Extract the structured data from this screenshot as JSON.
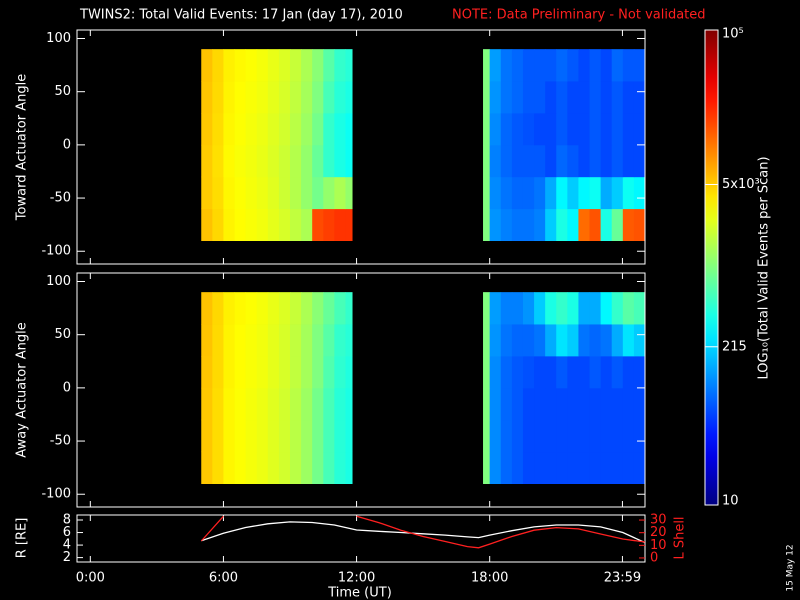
{
  "chart_data": [
    {
      "type": "heatmap",
      "title": "TWINS2: Total Valid Events: 17 Jan (day  17), 2010",
      "note": "NOTE: Data Preliminary - Not validated",
      "ylabel": "Toward Actuator Angle",
      "ylim": [
        -112,
        108
      ],
      "yticks": [
        -100,
        -50,
        0,
        50,
        100
      ],
      "xbins": [
        5,
        5.5,
        6,
        6.5,
        7,
        7.5,
        8,
        8.5,
        9,
        9.5,
        10,
        10.5,
        11,
        11.5,
        11.8,
        17.7,
        18,
        18.5,
        19,
        19.5,
        20,
        20.5,
        21,
        21.5,
        22,
        22.5,
        23,
        23.5,
        24,
        24.5,
        25
      ],
      "ybins": [
        -90,
        -60,
        -30,
        0,
        30,
        60,
        90
      ],
      "z": [
        [
          5500,
          4500,
          3500,
          3200,
          3000,
          2800,
          2500,
          2200,
          1800,
          1500,
          16000,
          18000,
          20000,
          20000,
          null,
          1000,
          120,
          100,
          90,
          90,
          100,
          200,
          400,
          300,
          12000,
          15000,
          400,
          800,
          14000,
          15000
        ],
        [
          5000,
          4300,
          3400,
          3100,
          2900,
          2700,
          2400,
          2000,
          1600,
          1200,
          900,
          1200,
          1500,
          1200,
          null,
          1000,
          110,
          90,
          80,
          80,
          90,
          150,
          300,
          200,
          300,
          350,
          150,
          200,
          350,
          300
        ],
        [
          5000,
          4200,
          3300,
          3000,
          2800,
          2600,
          2300,
          2000,
          1600,
          1200,
          800,
          500,
          400,
          350,
          null,
          1000,
          100,
          80,
          70,
          70,
          70,
          60,
          80,
          70,
          60,
          70,
          60,
          70,
          60,
          60
        ],
        [
          5200,
          4300,
          3400,
          3100,
          2900,
          2700,
          2400,
          2100,
          1700,
          1300,
          900,
          500,
          400,
          350,
          null,
          1000,
          110,
          80,
          70,
          65,
          60,
          60,
          70,
          60,
          60,
          70,
          60,
          70,
          60,
          60
        ],
        [
          5300,
          4400,
          3500,
          3200,
          3000,
          2800,
          2500,
          2200,
          1800,
          1400,
          1000,
          600,
          450,
          400,
          null,
          1000,
          120,
          90,
          80,
          70,
          70,
          60,
          70,
          60,
          60,
          70,
          60,
          70,
          60,
          60
        ],
        [
          5500,
          4500,
          3600,
          3300,
          3100,
          2900,
          2600,
          2300,
          1900,
          1500,
          1100,
          700,
          500,
          450,
          null,
          1000,
          130,
          90,
          80,
          70,
          70,
          70,
          80,
          70,
          60,
          70,
          60,
          80,
          70,
          70
        ]
      ],
      "colormap": "jet",
      "colorbar": {
        "lim": [
          10,
          100000
        ],
        "log": true,
        "ticks": [
          {
            "value": 10,
            "label": "10"
          },
          {
            "value": 215,
            "label": "215"
          },
          {
            "value": 5000,
            "label": "5x10³"
          },
          {
            "value": 100000,
            "label": "10⁵"
          }
        ],
        "label": "LOG₁₀(Total Valid Events per Scan)"
      }
    },
    {
      "type": "heatmap",
      "ylabel": "Away Actuator Angle",
      "ylim": [
        -112,
        108
      ],
      "yticks": [
        -100,
        -50,
        0,
        50,
        100
      ],
      "xbins": [
        5,
        5.5,
        6,
        6.5,
        7,
        7.5,
        8,
        8.5,
        9,
        9.5,
        10,
        10.5,
        11,
        11.5,
        11.8,
        17.7,
        18,
        18.5,
        19,
        19.5,
        20,
        20.5,
        21,
        21.5,
        22,
        22.5,
        23,
        23.5,
        24,
        24.5,
        25
      ],
      "ybins": [
        -90,
        -60,
        -30,
        0,
        30,
        60,
        90
      ],
      "z": [
        [
          5200,
          4300,
          3400,
          3100,
          2900,
          2700,
          2400,
          2100,
          1700,
          1300,
          900,
          600,
          450,
          400,
          null,
          1000,
          110,
          80,
          70,
          60,
          60,
          60,
          60,
          60,
          60,
          60,
          60,
          60,
          60,
          60
        ],
        [
          5200,
          4300,
          3400,
          3100,
          2900,
          2700,
          2400,
          2100,
          1700,
          1300,
          900,
          600,
          450,
          400,
          null,
          1000,
          110,
          80,
          70,
          60,
          60,
          60,
          60,
          60,
          60,
          60,
          60,
          60,
          60,
          60
        ],
        [
          5200,
          4300,
          3400,
          3100,
          2900,
          2700,
          2400,
          2100,
          1700,
          1300,
          900,
          600,
          450,
          400,
          null,
          1000,
          110,
          80,
          70,
          60,
          60,
          60,
          60,
          60,
          60,
          60,
          60,
          60,
          60,
          60
        ],
        [
          5300,
          4400,
          3500,
          3200,
          3000,
          2800,
          2500,
          2200,
          1800,
          1400,
          1000,
          650,
          480,
          420,
          null,
          1000,
          110,
          80,
          70,
          65,
          60,
          60,
          70,
          60,
          60,
          70,
          60,
          70,
          60,
          60
        ],
        [
          5400,
          4400,
          3500,
          3200,
          3000,
          2800,
          2500,
          2200,
          1800,
          1400,
          1000,
          700,
          500,
          450,
          null,
          1000,
          120,
          90,
          80,
          80,
          90,
          150,
          250,
          200,
          90,
          80,
          90,
          150,
          250,
          200
        ],
        [
          5500,
          4500,
          3600,
          3300,
          3100,
          2900,
          2600,
          2300,
          1900,
          1500,
          1100,
          800,
          600,
          500,
          null,
          1000,
          130,
          100,
          100,
          120,
          200,
          400,
          500,
          400,
          150,
          150,
          300,
          500,
          700,
          600
        ]
      ]
    },
    {
      "type": "line",
      "xlabel": "Time (UT)",
      "xlim": [
        -0.6,
        25
      ],
      "xticks": [
        {
          "value": 0,
          "label": "0:00"
        },
        {
          "value": 6,
          "label": "6:00"
        },
        {
          "value": 12,
          "label": "12:00"
        },
        {
          "value": 18,
          "label": "18:00"
        },
        {
          "value": 23.983,
          "label": "23:59"
        }
      ],
      "ylabel": "R [RE]",
      "ylim": [
        1.3,
        8.8
      ],
      "yticks": [
        2,
        4,
        6,
        8
      ],
      "y2label": "L Shell",
      "y2lim": [
        -3.2,
        34
      ],
      "y2ticks": [
        0,
        10,
        20,
        30
      ],
      "x": [
        5,
        6,
        7,
        8,
        9,
        10,
        11,
        12,
        13,
        14,
        15,
        16,
        17,
        17.5,
        18,
        19,
        20,
        21,
        22,
        23,
        24,
        25
      ],
      "series": [
        {
          "name": "R",
          "color": "#ffffff",
          "values": [
            4.7,
            5.9,
            6.8,
            7.4,
            7.7,
            7.6,
            7.2,
            6.4,
            6.2,
            6.0,
            5.8,
            5.6,
            5.3,
            5.2,
            5.6,
            6.3,
            6.9,
            7.2,
            7.2,
            6.9,
            6.0,
            4.4
          ]
        },
        {
          "name": "L Shell",
          "color": "#ff2020",
          "axis": "y2",
          "values": [
            13.4,
            33,
            null,
            null,
            null,
            null,
            null,
            33,
            28,
            22,
            17,
            13,
            9,
            8,
            11,
            17,
            22,
            24,
            23,
            19,
            15,
            12.6
          ]
        }
      ],
      "date_stamp": "15 May 12"
    }
  ]
}
